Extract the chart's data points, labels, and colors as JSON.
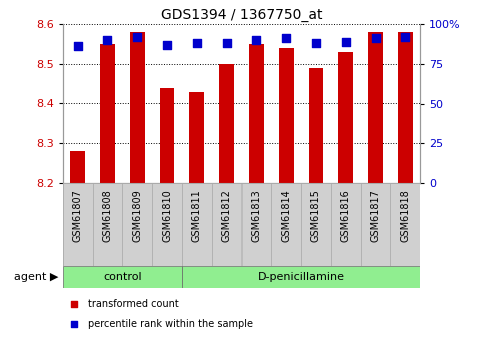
{
  "title": "GDS1394 / 1367750_at",
  "samples": [
    "GSM61807",
    "GSM61808",
    "GSM61809",
    "GSM61810",
    "GSM61811",
    "GSM61812",
    "GSM61813",
    "GSM61814",
    "GSM61815",
    "GSM61816",
    "GSM61817",
    "GSM61818"
  ],
  "transformed_counts": [
    8.28,
    8.55,
    8.58,
    8.44,
    8.43,
    8.5,
    8.55,
    8.54,
    8.49,
    8.53,
    8.58,
    8.58
  ],
  "percentile_ranks": [
    86,
    90,
    92,
    87,
    88,
    88,
    90,
    91,
    88,
    89,
    91,
    92
  ],
  "y_min": 8.2,
  "y_max": 8.6,
  "y_ticks": [
    8.2,
    8.3,
    8.4,
    8.5,
    8.6
  ],
  "right_y_ticks": [
    0,
    25,
    50,
    75,
    100
  ],
  "right_y_labels": [
    "0",
    "25",
    "50",
    "75",
    "100%"
  ],
  "bar_color": "#cc0000",
  "square_color": "#0000cc",
  "left_tick_color": "#cc0000",
  "right_tick_color": "#0000cc",
  "groups": [
    {
      "label": "control",
      "start": 0,
      "end": 3
    },
    {
      "label": "D-penicillamine",
      "start": 4,
      "end": 11
    }
  ],
  "group_color": "#90ee90",
  "agent_label": "agent",
  "legend_items": [
    {
      "label": "transformed count",
      "color": "#cc0000"
    },
    {
      "label": "percentile rank within the sample",
      "color": "#0000cc"
    }
  ],
  "bar_width": 0.5,
  "square_size": 28,
  "font_size": 8,
  "title_font_size": 10,
  "xtick_bg_color": "#d0d0d0"
}
